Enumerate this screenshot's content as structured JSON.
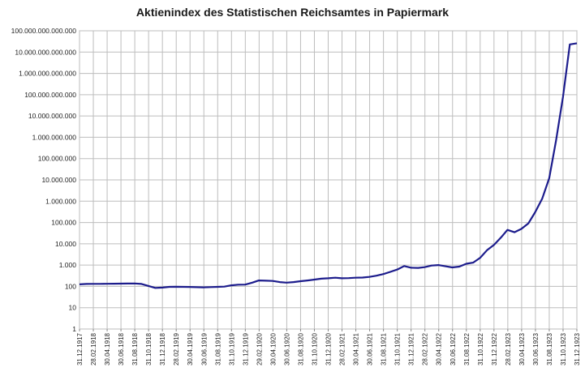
{
  "chart_data": {
    "type": "line",
    "title": "Aktienindex des Statistischen Reichsamtes in Papiermark",
    "xlabel": "",
    "ylabel": "",
    "scale_y": "log10",
    "ylim": [
      1,
      100000000000000
    ],
    "grid": true,
    "legend": "none",
    "line_color": "#1c1c8c",
    "y_tick_labels": [
      "1",
      "10",
      "100",
      "1.000",
      "10.000",
      "100.000",
      "1.000.000",
      "10.000.000",
      "100.000.000",
      "1.000.000.000",
      "10.000.000.000",
      "100.000.000.000",
      "1.000.000.000.000",
      "10.000.000.000.000",
      "100.000.000.000.000"
    ],
    "x_tick_labels": [
      "31.12.1917",
      "28.02.1918",
      "30.04.1918",
      "30.06.1918",
      "31.08.1918",
      "31.10.1918",
      "31.12.1918",
      "28.02.1919",
      "30.04.1919",
      "30.06.1919",
      "31.08.1919",
      "31.10.1919",
      "31.12.1919",
      "29.02.1920",
      "30.04.1920",
      "30.06.1920",
      "31.08.1920",
      "31.10.1920",
      "31.12.1920",
      "28.02.1921",
      "30.04.1921",
      "30.06.1921",
      "31.08.1921",
      "31.10.1921",
      "31.12.1921",
      "28.02.1922",
      "30.04.1922",
      "30.06.1922",
      "31.08.1922",
      "31.10.1922",
      "31.12.1922",
      "28.02.1923",
      "30.04.1923",
      "30.06.1923",
      "31.08.1923",
      "31.10.1923",
      "31.12.1923"
    ],
    "series": [
      {
        "values": [
          {
            "date": "1917-12-31",
            "value": 125
          },
          {
            "date": "1918-01-31",
            "value": 130
          },
          {
            "date": "1918-02-28",
            "value": 132
          },
          {
            "date": "1918-03-31",
            "value": 132
          },
          {
            "date": "1918-04-30",
            "value": 133
          },
          {
            "date": "1918-05-31",
            "value": 134
          },
          {
            "date": "1918-06-30",
            "value": 135
          },
          {
            "date": "1918-07-31",
            "value": 136
          },
          {
            "date": "1918-08-31",
            "value": 137
          },
          {
            "date": "1918-09-30",
            "value": 130
          },
          {
            "date": "1918-10-31",
            "value": 105
          },
          {
            "date": "1918-11-30",
            "value": 85
          },
          {
            "date": "1918-12-31",
            "value": 88
          },
          {
            "date": "1919-01-31",
            "value": 95
          },
          {
            "date": "1919-02-28",
            "value": 96
          },
          {
            "date": "1919-03-31",
            "value": 95
          },
          {
            "date": "1919-04-30",
            "value": 94
          },
          {
            "date": "1919-05-31",
            "value": 92
          },
          {
            "date": "1919-06-30",
            "value": 90
          },
          {
            "date": "1919-07-31",
            "value": 93
          },
          {
            "date": "1919-08-31",
            "value": 95
          },
          {
            "date": "1919-09-30",
            "value": 98
          },
          {
            "date": "1919-10-31",
            "value": 112
          },
          {
            "date": "1919-11-30",
            "value": 120
          },
          {
            "date": "1919-12-31",
            "value": 122
          },
          {
            "date": "1920-01-31",
            "value": 150
          },
          {
            "date": "1920-02-29",
            "value": 190
          },
          {
            "date": "1920-03-31",
            "value": 185
          },
          {
            "date": "1920-04-30",
            "value": 180
          },
          {
            "date": "1920-05-31",
            "value": 160
          },
          {
            "date": "1920-06-30",
            "value": 150
          },
          {
            "date": "1920-07-31",
            "value": 160
          },
          {
            "date": "1920-08-31",
            "value": 175
          },
          {
            "date": "1920-09-30",
            "value": 190
          },
          {
            "date": "1920-10-31",
            "value": 210
          },
          {
            "date": "1920-11-30",
            "value": 230
          },
          {
            "date": "1920-12-31",
            "value": 240
          },
          {
            "date": "1921-01-31",
            "value": 255
          },
          {
            "date": "1921-02-28",
            "value": 240
          },
          {
            "date": "1921-03-31",
            "value": 245
          },
          {
            "date": "1921-04-30",
            "value": 255
          },
          {
            "date": "1921-05-31",
            "value": 260
          },
          {
            "date": "1921-06-30",
            "value": 280
          },
          {
            "date": "1921-07-31",
            "value": 320
          },
          {
            "date": "1921-08-31",
            "value": 380
          },
          {
            "date": "1921-09-30",
            "value": 480
          },
          {
            "date": "1921-10-31",
            "value": 620
          },
          {
            "date": "1921-11-30",
            "value": 900
          },
          {
            "date": "1921-12-31",
            "value": 750
          },
          {
            "date": "1922-01-31",
            "value": 740
          },
          {
            "date": "1922-02-28",
            "value": 800
          },
          {
            "date": "1922-03-31",
            "value": 950
          },
          {
            "date": "1922-04-30",
            "value": 1000
          },
          {
            "date": "1922-05-31",
            "value": 880
          },
          {
            "date": "1922-06-30",
            "value": 780
          },
          {
            "date": "1922-07-31",
            "value": 850
          },
          {
            "date": "1922-08-31",
            "value": 1150
          },
          {
            "date": "1922-09-30",
            "value": 1300
          },
          {
            "date": "1922-10-31",
            "value": 2200
          },
          {
            "date": "1922-11-30",
            "value": 5000
          },
          {
            "date": "1922-12-31",
            "value": 9000
          },
          {
            "date": "1923-01-31",
            "value": 20000
          },
          {
            "date": "1923-02-28",
            "value": 45000
          },
          {
            "date": "1923-03-31",
            "value": 35000
          },
          {
            "date": "1923-04-30",
            "value": 50000
          },
          {
            "date": "1923-05-31",
            "value": 90000
          },
          {
            "date": "1923-06-30",
            "value": 300000
          },
          {
            "date": "1923-07-31",
            "value": 1300000
          },
          {
            "date": "1923-08-31",
            "value": 12000000
          },
          {
            "date": "1923-09-30",
            "value": 700000000
          },
          {
            "date": "1923-10-31",
            "value": 80000000000
          },
          {
            "date": "1923-11-30",
            "value": 23000000000000
          },
          {
            "date": "1923-12-31",
            "value": 26000000000000
          }
        ]
      }
    ]
  }
}
